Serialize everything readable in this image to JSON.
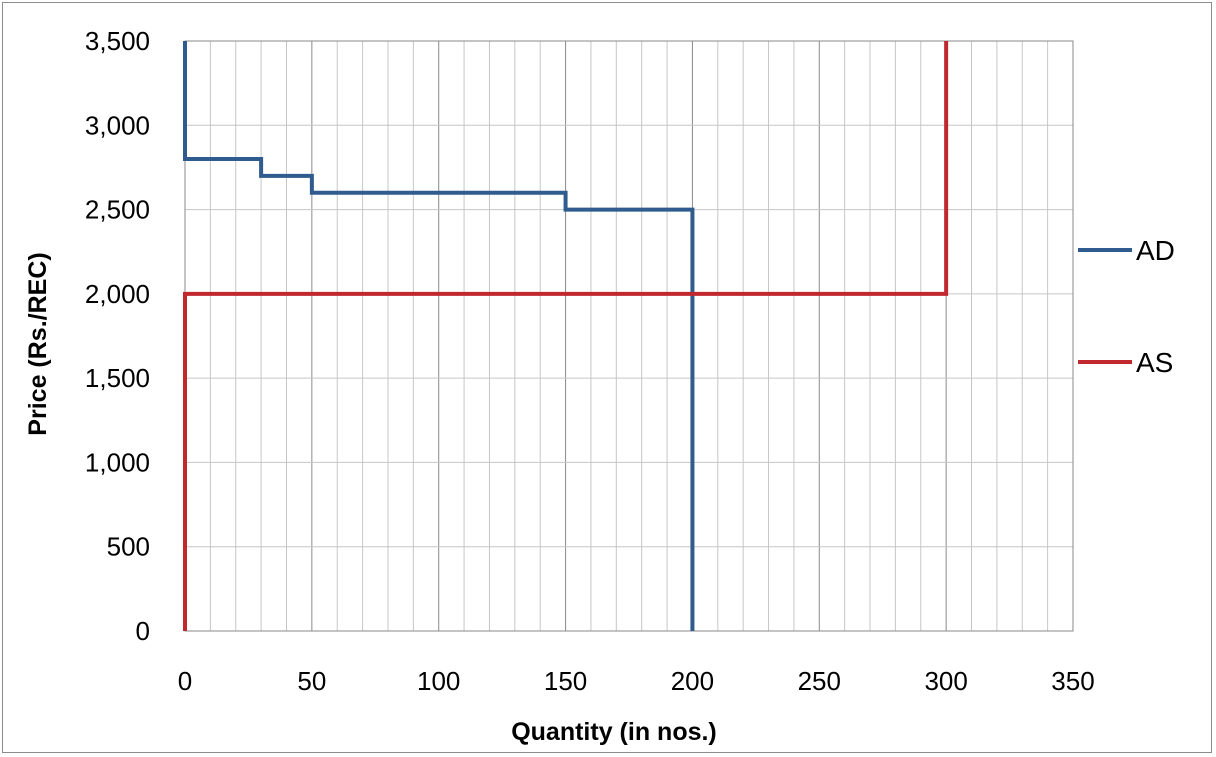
{
  "chart_data": {
    "type": "line",
    "step": true,
    "title": "",
    "xlabel": "Quantity (in nos.)",
    "ylabel": "Price (Rs./REC)",
    "xlim": [
      0,
      350
    ],
    "ylim": [
      0,
      3500
    ],
    "x_ticks": [
      0,
      50,
      100,
      150,
      200,
      250,
      300,
      350
    ],
    "y_ticks": [
      0,
      500,
      1000,
      1500,
      2000,
      2500,
      3000,
      3500
    ],
    "x_tick_labels": [
      "0",
      "50",
      "100",
      "150",
      "200",
      "250",
      "300",
      "350"
    ],
    "y_tick_labels": [
      "0",
      "500",
      "1,000",
      "1,500",
      "2,000",
      "2,500",
      "3,000",
      "3,500"
    ],
    "x_minor_step": 10,
    "grid": true,
    "legend_position": "right",
    "series": [
      {
        "name": "AD",
        "color": "#2f5b8f",
        "points": [
          [
            0,
            3500
          ],
          [
            0,
            2800
          ],
          [
            30,
            2800
          ],
          [
            30,
            2700
          ],
          [
            50,
            2700
          ],
          [
            50,
            2600
          ],
          [
            150,
            2600
          ],
          [
            150,
            2500
          ],
          [
            200,
            2500
          ],
          [
            200,
            0
          ]
        ]
      },
      {
        "name": "AS",
        "color": "#c0282e",
        "points": [
          [
            0,
            0
          ],
          [
            0,
            2000
          ],
          [
            300,
            2000
          ],
          [
            300,
            3500
          ]
        ]
      }
    ]
  }
}
